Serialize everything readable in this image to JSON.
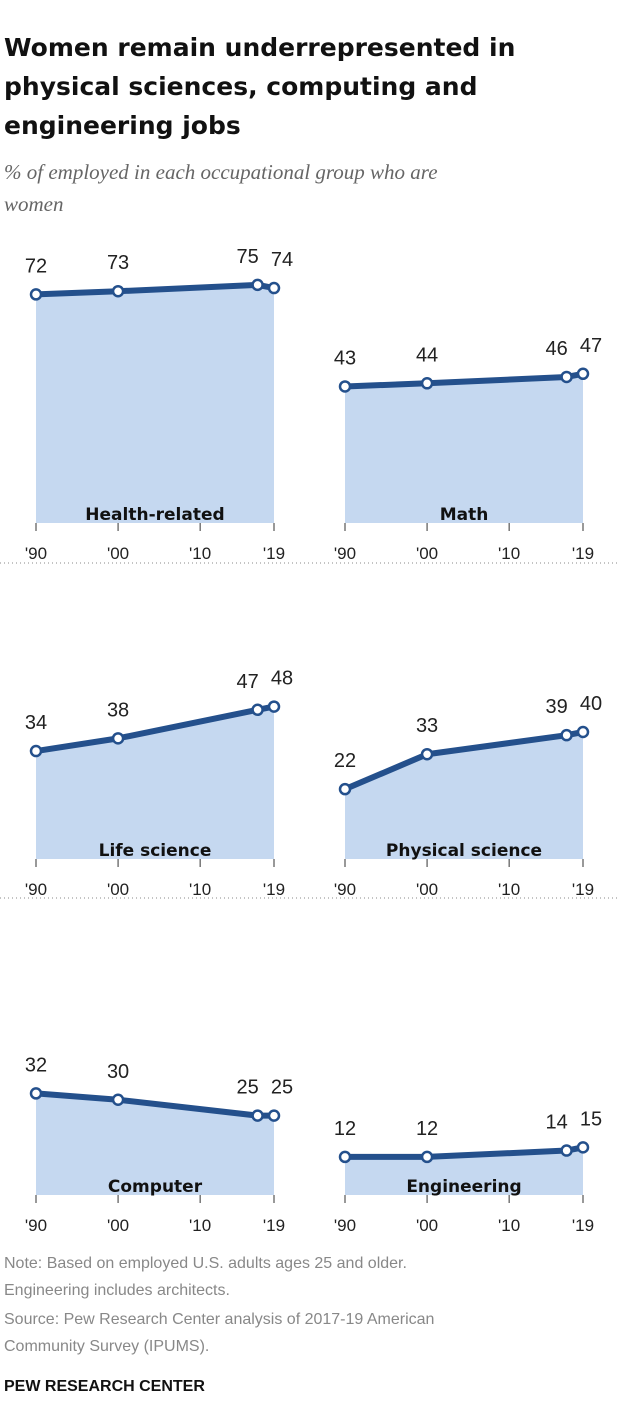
{
  "header": {
    "title": [
      "Women remain underrepresented in",
      "physical sciences, computing and",
      "engineering jobs"
    ],
    "subtitle": [
      "% of employed in each occupational group who are",
      "women"
    ]
  },
  "chart_data": [
    {
      "type": "area",
      "title": "Health-related",
      "x": [
        1990,
        2000,
        2017,
        2019
      ],
      "values": [
        72,
        73,
        75,
        74
      ],
      "xlim": [
        1990,
        2019
      ],
      "xticks": [
        {
          "value": 1990,
          "label": "'90"
        },
        {
          "value": 2000,
          "label": "'00"
        },
        {
          "value": 2010,
          "label": "'10"
        },
        {
          "value": 2019,
          "label": "'19"
        }
      ],
      "ylim": [
        0,
        80
      ],
      "color": "#24508c",
      "fill": "#c5d8f0"
    },
    {
      "type": "area",
      "title": "Math",
      "x": [
        1990,
        2000,
        2017,
        2019
      ],
      "values": [
        43,
        44,
        46,
        47
      ],
      "xlim": [
        1990,
        2019
      ],
      "xticks": [
        {
          "value": 1990,
          "label": "'90"
        },
        {
          "value": 2000,
          "label": "'00"
        },
        {
          "value": 2010,
          "label": "'10"
        },
        {
          "value": 2019,
          "label": "'19"
        }
      ],
      "ylim": [
        0,
        80
      ],
      "color": "#24508c",
      "fill": "#c5d8f0"
    },
    {
      "type": "area",
      "title": "Life science",
      "x": [
        1990,
        2000,
        2017,
        2019
      ],
      "values": [
        34,
        38,
        47,
        48
      ],
      "xlim": [
        1990,
        2019
      ],
      "xticks": [
        {
          "value": 1990,
          "label": "'90"
        },
        {
          "value": 2000,
          "label": "'00"
        },
        {
          "value": 2010,
          "label": "'10"
        },
        {
          "value": 2019,
          "label": "'19"
        }
      ],
      "ylim": [
        0,
        80
      ],
      "color": "#24508c",
      "fill": "#c5d8f0"
    },
    {
      "type": "area",
      "title": "Physical science",
      "x": [
        1990,
        2000,
        2017,
        2019
      ],
      "values": [
        22,
        33,
        39,
        40
      ],
      "xlim": [
        1990,
        2019
      ],
      "xticks": [
        {
          "value": 1990,
          "label": "'90"
        },
        {
          "value": 2000,
          "label": "'00"
        },
        {
          "value": 2010,
          "label": "'10"
        },
        {
          "value": 2019,
          "label": "'19"
        }
      ],
      "ylim": [
        0,
        80
      ],
      "color": "#24508c",
      "fill": "#c5d8f0"
    },
    {
      "type": "area",
      "title": "Computer",
      "x": [
        1990,
        2000,
        2017,
        2019
      ],
      "values": [
        32,
        30,
        25,
        25
      ],
      "xlim": [
        1990,
        2019
      ],
      "xticks": [
        {
          "value": 1990,
          "label": "'90"
        },
        {
          "value": 2000,
          "label": "'00"
        },
        {
          "value": 2010,
          "label": "'10"
        },
        {
          "value": 2019,
          "label": "'19"
        }
      ],
      "ylim": [
        0,
        80
      ],
      "color": "#24508c",
      "fill": "#c5d8f0"
    },
    {
      "type": "area",
      "title": "Engineering",
      "x": [
        1990,
        2000,
        2017,
        2019
      ],
      "values": [
        12,
        12,
        14,
        15
      ],
      "xlim": [
        1990,
        2019
      ],
      "xticks": [
        {
          "value": 1990,
          "label": "'90"
        },
        {
          "value": 2000,
          "label": "'00"
        },
        {
          "value": 2010,
          "label": "'10"
        },
        {
          "value": 2019,
          "label": "'19"
        }
      ],
      "ylim": [
        0,
        80
      ],
      "color": "#24508c",
      "fill": "#c5d8f0"
    }
  ],
  "footer": {
    "notes": [
      "Note: Based on employed U.S. adults ages 25 and older.",
      "Engineering includes architects.",
      "Source: Pew Research Center analysis of 2017-19 American",
      "Community Survey (IPUMS)."
    ],
    "brand": "PEW RESEARCH CENTER"
  }
}
